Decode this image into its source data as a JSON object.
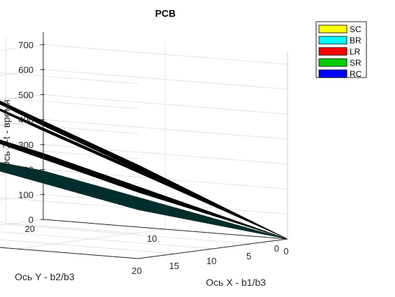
{
  "chart_data": {
    "type": "surface",
    "title": "PCB",
    "xlabel": "Ось X - b1/b3",
    "ylabel": "Ось Y - b2/b3",
    "zlabel": "Ось Z-t - время",
    "xlim": [
      0,
      20
    ],
    "ylim": [
      0,
      20
    ],
    "zlim": [
      0,
      750
    ],
    "xticks": [
      "0",
      "5",
      "10",
      "15",
      "20"
    ],
    "yticks": [
      "0",
      "10",
      "20"
    ],
    "zticks": [
      "0",
      "100",
      "200",
      "300",
      "400",
      "500",
      "600",
      "700"
    ],
    "grid": true,
    "legend_position": "top-right",
    "series": [
      {
        "name": "SC",
        "color": "#ffff00",
        "z_at": {
          "x0y0": 0,
          "x20y20": 710
        }
      },
      {
        "name": "BR",
        "color": "#00ffff",
        "z_at": {
          "x0y0": 0,
          "x20y20": 390
        }
      },
      {
        "name": "LR",
        "color": "#ff0000",
        "z_at": {
          "x0y0": 0,
          "x20y20": 750
        }
      },
      {
        "name": "SR",
        "color": "#00cc00",
        "z_at": {
          "x0y0": 0,
          "x20y20": 530
        }
      },
      {
        "name": "RC",
        "color": "#0000ff",
        "z_at": {
          "x0y0": 0,
          "x20y20": 750
        }
      }
    ]
  }
}
